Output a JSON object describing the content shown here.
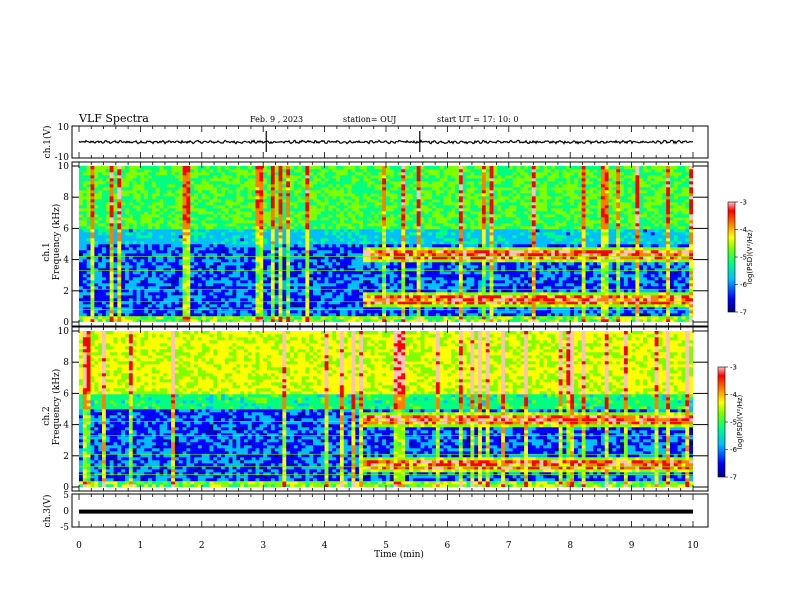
{
  "header": {
    "title": "VLF Spectra",
    "date": "Feb. 9 , 2023",
    "station": "station= OUJ",
    "start": "start UT = 17: 10: 0"
  },
  "chart_data": [
    {
      "type": "line",
      "ylabel": "ch.1(V)",
      "ylim": [
        -10,
        10
      ],
      "y_ticks": [
        "10",
        "-10"
      ],
      "description_level": "waveform oscillating about 0 with amplitude about 1 V"
    },
    {
      "type": "heatmap",
      "ylabel_top": "ch.1",
      "ylabel": "Frequency (kHz)",
      "ylim": [
        0,
        10
      ],
      "y_ticks": [
        "0",
        "2",
        "4",
        "6",
        "8",
        "10"
      ],
      "colorbar": {
        "ticks": [
          "-3",
          "-4",
          "-5",
          "-6",
          "-7"
        ],
        "label": "log(PSD)(V²/Hz)",
        "range": [
          -7,
          -3
        ]
      },
      "bands_kHz": [
        1.5,
        4.4
      ],
      "bands_start_min": 4.65
    },
    {
      "type": "heatmap",
      "ylabel_top": "ch.2",
      "ylabel": "Frequency (kHz)",
      "ylim": [
        0,
        10
      ],
      "y_ticks": [
        "0",
        "2",
        "4",
        "6",
        "8",
        "10"
      ],
      "colorbar": {
        "ticks": [
          "-3",
          "-4",
          "-5",
          "-6",
          "-7"
        ],
        "label": "log(PSD)(V²/Hz)",
        "range": [
          -7,
          -3
        ]
      },
      "bands_kHz": [
        1.5,
        4.3
      ],
      "bands_start_min": 4.65
    },
    {
      "type": "line",
      "ylabel": "ch.3(V)",
      "ylim": [
        -5,
        5
      ],
      "y_ticks": [
        "5",
        "0",
        "-5"
      ],
      "values_const": -0.2
    }
  ],
  "x_axis": {
    "label": "Time (min)",
    "ticks": [
      "0",
      "1",
      "2",
      "3",
      "4",
      "5",
      "6",
      "7",
      "8",
      "9",
      "10"
    ],
    "xlim": [
      0,
      10
    ]
  },
  "colors": {
    "colormap": [
      "#00007f",
      "#0000ff",
      "#00bfff",
      "#00ff7f",
      "#7fff00",
      "#ffff00",
      "#ff7f00",
      "#ff0000",
      "#ffc0c0"
    ]
  }
}
